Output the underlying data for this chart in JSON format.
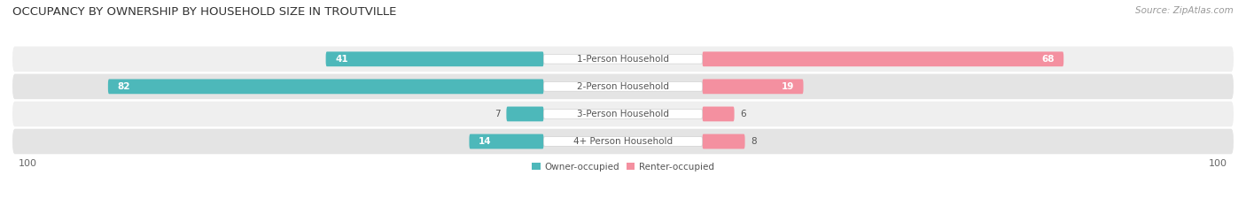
{
  "title": "OCCUPANCY BY OWNERSHIP BY HOUSEHOLD SIZE IN TROUTVILLE",
  "source": "Source: ZipAtlas.com",
  "categories": [
    "1-Person Household",
    "2-Person Household",
    "3-Person Household",
    "4+ Person Household"
  ],
  "owner_values": [
    41,
    82,
    7,
    14
  ],
  "renter_values": [
    68,
    19,
    6,
    8
  ],
  "max_val": 100,
  "owner_color": "#4db8ba",
  "renter_color": "#f490a0",
  "row_bg_light": "#efefef",
  "row_bg_dark": "#e4e4e4",
  "label_bg_color": "#ffffff",
  "axis_label_left": "100",
  "axis_label_right": "100",
  "legend_owner": "Owner-occupied",
  "legend_renter": "Renter-occupied",
  "title_fontsize": 9.5,
  "source_fontsize": 7.5,
  "bar_label_fontsize": 7.5,
  "category_fontsize": 7.5,
  "axis_fontsize": 8
}
